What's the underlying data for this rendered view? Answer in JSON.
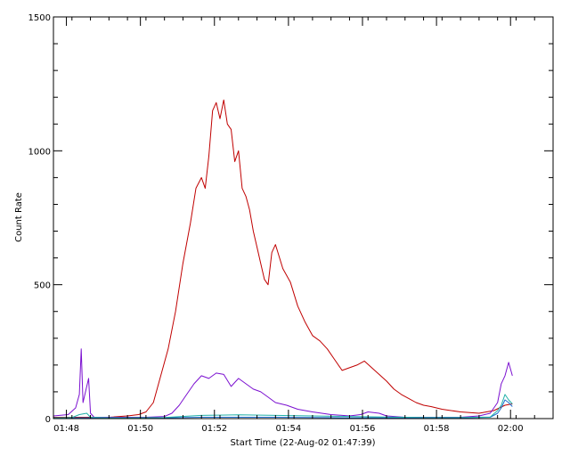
{
  "chart_data": {
    "type": "line",
    "title": "",
    "xlabel": "Start Time (22-Aug-02 01:47:39)",
    "ylabel": "Count Rate",
    "x_unit": "minutes after 01:47:39",
    "xlim": [
      0,
      13.5
    ],
    "ylim": [
      0,
      1500
    ],
    "xticks": [
      {
        "value": 0.35,
        "label": "01:48"
      },
      {
        "value": 2.35,
        "label": "01:50"
      },
      {
        "value": 4.35,
        "label": "01:52"
      },
      {
        "value": 6.35,
        "label": "01:54"
      },
      {
        "value": 8.35,
        "label": "01:56"
      },
      {
        "value": 10.35,
        "label": "01:58"
      },
      {
        "value": 12.35,
        "label": "02:00"
      }
    ],
    "yticks": [
      {
        "value": 0,
        "label": "0"
      },
      {
        "value": 500,
        "label": "500"
      },
      {
        "value": 1000,
        "label": "1000"
      },
      {
        "value": 1500,
        "label": "1500"
      }
    ],
    "legend": "none",
    "grid": false,
    "series": [
      {
        "color": "#c00000",
        "x": [
          0.0,
          0.5,
          1.0,
          1.5,
          2.0,
          2.3,
          2.5,
          2.7,
          2.9,
          3.1,
          3.3,
          3.5,
          3.7,
          3.85,
          4.0,
          4.1,
          4.2,
          4.3,
          4.4,
          4.5,
          4.6,
          4.7,
          4.8,
          4.9,
          5.0,
          5.1,
          5.2,
          5.3,
          5.4,
          5.5,
          5.6,
          5.7,
          5.8,
          5.9,
          6.0,
          6.2,
          6.4,
          6.6,
          6.8,
          7.0,
          7.2,
          7.4,
          7.6,
          7.8,
          8.0,
          8.2,
          8.4,
          8.6,
          8.8,
          9.0,
          9.2,
          9.4,
          9.6,
          9.8,
          10.0,
          10.2,
          10.5,
          11.0,
          11.5,
          11.9,
          12.2,
          12.4
        ],
        "values": [
          5,
          5,
          5,
          5,
          10,
          15,
          25,
          60,
          160,
          260,
          400,
          580,
          730,
          860,
          900,
          860,
          980,
          1150,
          1180,
          1120,
          1190,
          1100,
          1080,
          960,
          1000,
          860,
          830,
          780,
          700,
          640,
          580,
          520,
          500,
          620,
          650,
          560,
          510,
          420,
          360,
          310,
          290,
          260,
          220,
          180,
          190,
          200,
          215,
          190,
          165,
          140,
          110,
          90,
          75,
          60,
          50,
          45,
          35,
          25,
          20,
          30,
          50,
          55
        ]
      },
      {
        "color": "#7b10d0",
        "x": [
          0.0,
          0.4,
          0.6,
          0.7,
          0.75,
          0.8,
          0.9,
          0.95,
          1.0,
          1.1,
          1.5,
          2.0,
          2.5,
          3.0,
          3.2,
          3.4,
          3.6,
          3.8,
          4.0,
          4.2,
          4.4,
          4.6,
          4.8,
          5.0,
          5.2,
          5.4,
          5.6,
          5.8,
          6.0,
          6.3,
          6.6,
          7.0,
          7.5,
          8.0,
          8.3,
          8.5,
          8.8,
          9.0,
          9.5,
          10.0,
          10.5,
          11.0,
          11.5,
          11.8,
          12.0,
          12.1,
          12.2,
          12.3,
          12.4
        ],
        "values": [
          10,
          15,
          40,
          90,
          260,
          60,
          120,
          150,
          20,
          5,
          5,
          5,
          5,
          8,
          20,
          50,
          90,
          130,
          160,
          150,
          170,
          165,
          120,
          150,
          130,
          110,
          100,
          80,
          60,
          50,
          35,
          25,
          15,
          10,
          15,
          25,
          20,
          10,
          5,
          5,
          5,
          5,
          10,
          20,
          60,
          130,
          160,
          210,
          160
        ]
      },
      {
        "color": "#1f6fd0",
        "x": [
          0.0,
          1.0,
          2.0,
          3.0,
          4.0,
          5.0,
          6.0,
          7.0,
          8.0,
          9.0,
          10.0,
          11.0,
          11.8,
          12.0,
          12.1,
          12.2,
          12.3,
          12.4
        ],
        "values": [
          3,
          3,
          3,
          3,
          5,
          5,
          5,
          4,
          3,
          3,
          3,
          3,
          5,
          20,
          40,
          70,
          60,
          45
        ]
      },
      {
        "color": "#20b0a8",
        "x": [
          0.0,
          0.5,
          0.7,
          0.9,
          1.0,
          1.5,
          2.0,
          3.0,
          4.0,
          5.0,
          6.0,
          7.0,
          8.0,
          9.0,
          10.0,
          11.0,
          11.8,
          12.0,
          12.1,
          12.2,
          12.3,
          12.4
        ],
        "values": [
          2,
          4,
          15,
          20,
          5,
          3,
          3,
          4,
          12,
          14,
          12,
          10,
          8,
          6,
          4,
          4,
          6,
          30,
          50,
          90,
          70,
          55
        ]
      }
    ]
  }
}
